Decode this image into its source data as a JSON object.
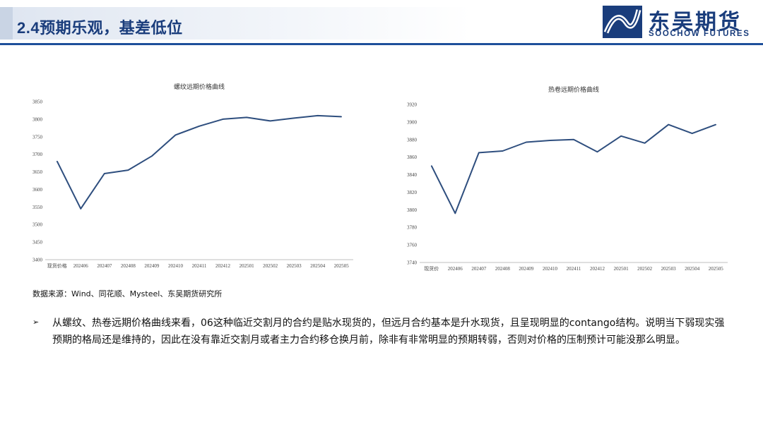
{
  "header": {
    "title": "2.4预期乐观，基差低位",
    "logo_cn": "东吴期货",
    "logo_en": "SOOCHOW FUTURES",
    "brand_color": "#1a3d7c"
  },
  "chart_data": [
    {
      "type": "line",
      "title": "螺纹远期价格曲线",
      "categories": [
        "现货价格",
        "202406",
        "202407",
        "202408",
        "202409",
        "202410",
        "202411",
        "202412",
        "202501",
        "202502",
        "202503",
        "202504",
        "202505"
      ],
      "values": [
        3680,
        3545,
        3645,
        3655,
        3695,
        3755,
        3780,
        3800,
        3805,
        3795,
        3803,
        3810,
        3807
      ],
      "ylim": [
        3400,
        3850
      ],
      "yticks": [
        3400,
        3450,
        3500,
        3550,
        3600,
        3650,
        3700,
        3750,
        3800,
        3850
      ],
      "line_color": "#2e4e7e",
      "grid": false
    },
    {
      "type": "line",
      "title": "热卷远期价格曲线",
      "categories": [
        "现货价",
        "202406",
        "202407",
        "202408",
        "202409",
        "202410",
        "202411",
        "202412",
        "202501",
        "202502",
        "202503",
        "202504",
        "202505"
      ],
      "values": [
        3850,
        3796,
        3865,
        3867,
        3877,
        3879,
        3880,
        3866,
        3884,
        3876,
        3897,
        3887,
        3897
      ],
      "ylim": [
        3740,
        3920
      ],
      "yticks": [
        3740,
        3760,
        3780,
        3800,
        3820,
        3840,
        3860,
        3880,
        3900,
        3920
      ],
      "line_color": "#2e4e7e",
      "grid": false
    }
  ],
  "source": "数据来源：Wind、同花顺、Mysteel、东吴期货研究所",
  "bullet": {
    "marker": "➢",
    "text": "从螺纹、热卷远期价格曲线来看，06这种临近交割月的合约是贴水现货的，但远月合约基本是升水现货，且呈现明显的contango结构。说明当下弱现实强预期的格局还是维持的，因此在没有靠近交割月或者主力合约移仓换月前，除非有非常明显的预期转弱，否则对价格的压制预计可能没那么明显。"
  }
}
